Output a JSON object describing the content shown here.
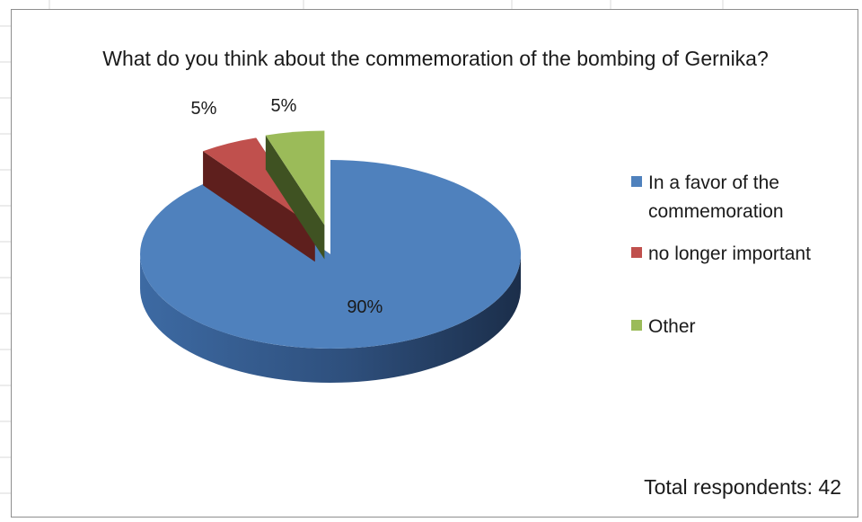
{
  "chart_data": {
    "type": "pie",
    "title": "What do you think about the commemoration of the bombing of Gernika?",
    "categories": [
      "In a favor of the commemoration",
      "no longer important",
      "Other"
    ],
    "values": [
      90,
      5,
      5
    ],
    "data_labels": [
      "90%",
      "5%",
      "5%"
    ],
    "colors": [
      "#4f81bd",
      "#c0504d",
      "#9bbb59"
    ],
    "legend_position": "right",
    "three_d": true,
    "exploded": [
      "no longer important",
      "Other"
    ],
    "footnote": "Total respondents: 42"
  }
}
